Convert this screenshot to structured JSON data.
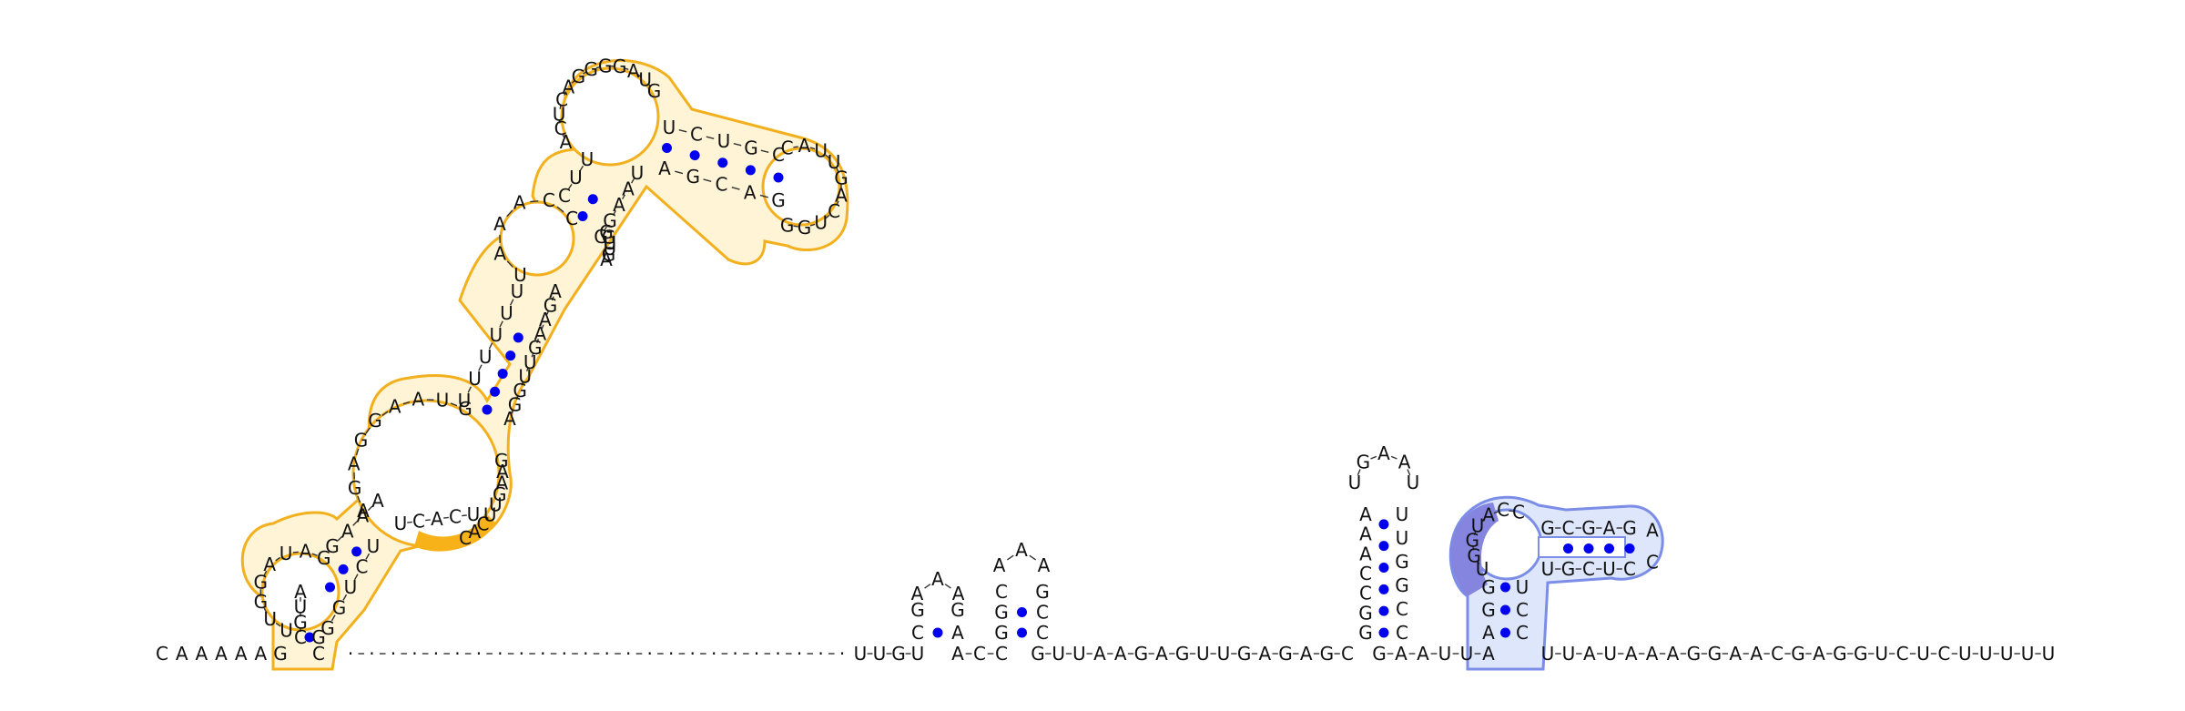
{
  "diagram": {
    "type": "rna-secondary-structure",
    "colors": {
      "background": "#ffffff",
      "nucleotide_text": "#111111",
      "backbone": "#333333",
      "base_pair_dot": "#0000ee",
      "region1_fill": "#fff4d6",
      "region1_outline": "#f2b01e",
      "region1_strong": "#f7b21a",
      "region2_fill": "#dde6fb",
      "region2_outline": "#7b8de6",
      "region2_strong": "#8585e0"
    },
    "segments": {
      "five_prime_tail": "CAAAAAG",
      "stem1_5p": "GCAUAGGUAAGAGUAA",
      "hairpin_large_5p": "UUUUUCUAAACCAUCAGGGAUGUCUGCCAUUG",
      "hairpin_large_3p": "ACUGGGACGCAGAUAAUGGGGUUGAGAAGUUCACUCCUGG",
      "spacer_dots": 24,
      "small_hairpin_a": "UUGUCGAAAGACC",
      "small_hairpin_b": "GCAAAGCC",
      "linker1": "GUUAAGAGUUGAGAGC",
      "tall_hairpin": "GGCCAAAAUGAAUUGGC",
      "linker2": "GAAUUA",
      "pseudoknot_hairpin": "AGGUGACCGCGAGACCUCGUUCU",
      "three_prime_tail": "UUAUAAAGGAACGAGGUCUCUUUUU"
    }
  }
}
